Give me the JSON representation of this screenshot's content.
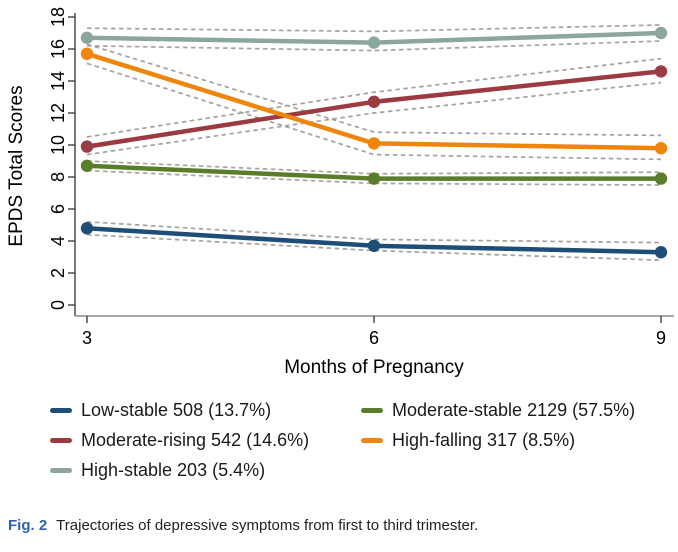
{
  "chart_data": {
    "type": "line",
    "title": "",
    "xlabel": "Months of Pregnancy",
    "ylabel": "EPDS Total Scores",
    "x": [
      3,
      6,
      9
    ],
    "xticks": [
      3,
      6,
      9
    ],
    "yticks": [
      0,
      2,
      4,
      6,
      8,
      10,
      12,
      14,
      16,
      18
    ],
    "ylim": [
      0,
      18
    ],
    "xlim": [
      3,
      9
    ],
    "grid": false,
    "legend_position": "below",
    "ci_style": "dashed",
    "series": [
      {
        "name": "Low-stable",
        "count": "508",
        "percent": "13.7%",
        "legend_label": "Low-stable 508 (13.7%)",
        "color": "#1e4d78",
        "values": [
          4.8,
          3.7,
          3.3
        ],
        "ci_upper": [
          5.2,
          4.1,
          3.9
        ],
        "ci_lower": [
          4.4,
          3.4,
          2.8
        ]
      },
      {
        "name": "Moderate-stable",
        "count": "2129",
        "percent": "57.5%",
        "legend_label": "Moderate-stable 2129 (57.5%)",
        "color": "#5a7d29",
        "values": [
          8.7,
          7.9,
          7.9
        ],
        "ci_upper": [
          9.0,
          8.2,
          8.3
        ],
        "ci_lower": [
          8.4,
          7.6,
          7.5
        ]
      },
      {
        "name": "Moderate-rising",
        "count": "542",
        "percent": "14.6%",
        "legend_label": "Moderate-rising 542 (14.6%)",
        "color": "#9c3a42",
        "values": [
          9.9,
          12.7,
          14.6
        ],
        "ci_upper": [
          10.5,
          13.3,
          15.4
        ],
        "ci_lower": [
          9.4,
          12.0,
          13.9
        ]
      },
      {
        "name": "High-falling",
        "count": "317",
        "percent": "8.5%",
        "legend_label": "High-falling 317 (8.5%)",
        "color": "#ee860d",
        "values": [
          15.7,
          10.1,
          9.8
        ],
        "ci_upper": [
          16.3,
          10.8,
          10.6
        ],
        "ci_lower": [
          15.1,
          9.4,
          9.1
        ]
      },
      {
        "name": "High-stable",
        "count": "203",
        "percent": "5.4%",
        "legend_label": "High-stable 203 (5.4%)",
        "color": "#8ba69d",
        "values": [
          16.7,
          16.4,
          17.0
        ],
        "ci_upper": [
          17.3,
          17.1,
          17.5
        ],
        "ci_lower": [
          16.2,
          15.9,
          16.5
        ]
      }
    ],
    "legend_order": [
      "Low-stable",
      "Moderate-stable",
      "Moderate-rising",
      "High-falling",
      "High-stable"
    ]
  },
  "caption": {
    "label": "Fig. 2",
    "text": "Trajectories of depressive symptoms from first to third trimester."
  },
  "colors": {
    "ci_dash": "#a7a09b",
    "axis_y": "#3f3f3f",
    "axis_x": "#8a8a8a",
    "tick": "#3f3f3f",
    "text": "#000000",
    "fig_label_blue": "#2e67a7"
  }
}
